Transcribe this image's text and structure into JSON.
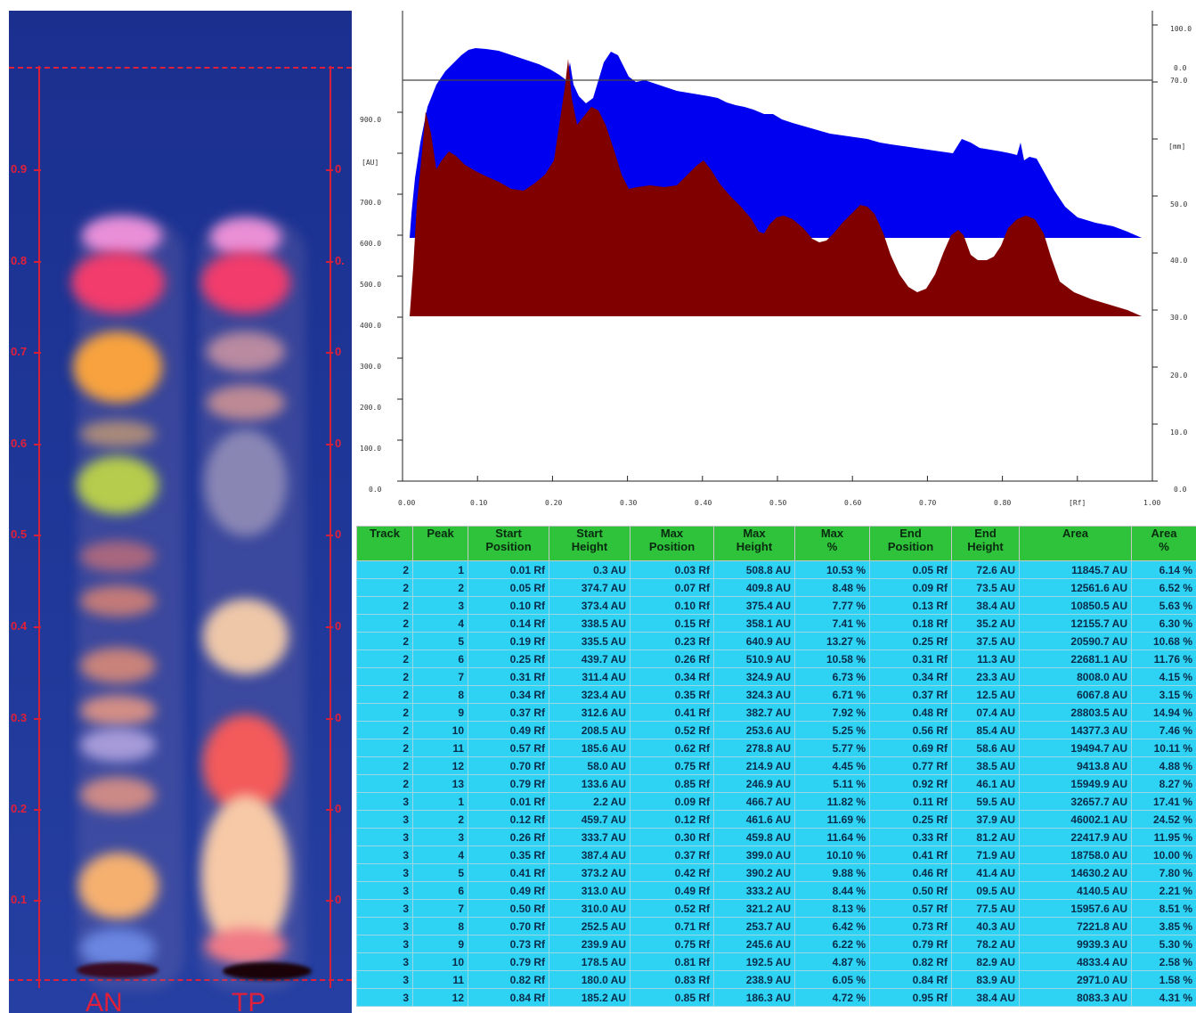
{
  "plate": {
    "rf_labels": [
      "0.9",
      "0.8",
      "0.7",
      "0.6",
      "0.5",
      "0.4",
      "0.3",
      "0.2",
      "0.1"
    ],
    "rf_labels_right": [
      "0",
      "0.",
      "0",
      "0",
      "0",
      "0",
      "0",
      "0",
      "0"
    ],
    "lanes": [
      "AN",
      "TP"
    ]
  },
  "densitogram": {
    "y_left": [
      "900.0",
      "[AU]",
      "700.0",
      "600.0",
      "500.0",
      "400.0",
      "300.0",
      "200.0",
      "100.0",
      "0.0"
    ],
    "y_right": [
      "100.0",
      "0.0",
      "70.0",
      "[mm]",
      "50.0",
      "40.0",
      "30.0",
      "20.0",
      "10.0",
      "0.0"
    ],
    "x_ticks": [
      "0.00",
      "0.10",
      "0.20",
      "0.30",
      "0.40",
      "0.50",
      "0.60",
      "0.70",
      "0.80",
      "[Rf]",
      "1.00"
    ],
    "colors": {
      "track_top": "#0000f0",
      "track_bottom": "#800000"
    }
  },
  "table": {
    "headers": [
      {
        "l1": "Track",
        "l2": ""
      },
      {
        "l1": "Peak",
        "l2": ""
      },
      {
        "l1": "Start",
        "l2": "Position"
      },
      {
        "l1": "Start",
        "l2": "Height"
      },
      {
        "l1": "Max",
        "l2": "Position"
      },
      {
        "l1": "Max",
        "l2": "Height"
      },
      {
        "l1": "Max",
        "l2": "%"
      },
      {
        "l1": "End",
        "l2": "Position"
      },
      {
        "l1": "End",
        "l2": "Height"
      },
      {
        "l1": "Area",
        "l2": ""
      },
      {
        "l1": "Area",
        "l2": "%"
      }
    ],
    "rows": [
      [
        "2",
        "1",
        "0.01 Rf",
        "0.3 AU",
        "0.03 Rf",
        "508.8 AU",
        "10.53 %",
        "0.05 Rf",
        "72.6 AU",
        "11845.7 AU",
        "6.14 %"
      ],
      [
        "2",
        "2",
        "0.05 Rf",
        "374.7 AU",
        "0.07 Rf",
        "409.8 AU",
        "8.48 %",
        "0.09 Rf",
        "73.5 AU",
        "12561.6 AU",
        "6.52 %"
      ],
      [
        "2",
        "3",
        "0.10 Rf",
        "373.4 AU",
        "0.10 Rf",
        "375.4 AU",
        "7.77 %",
        "0.13 Rf",
        "38.4 AU",
        "10850.5 AU",
        "5.63 %"
      ],
      [
        "2",
        "4",
        "0.14 Rf",
        "338.5 AU",
        "0.15 Rf",
        "358.1 AU",
        "7.41 %",
        "0.18 Rf",
        "35.2 AU",
        "12155.7 AU",
        "6.30 %"
      ],
      [
        "2",
        "5",
        "0.19 Rf",
        "335.5 AU",
        "0.23 Rf",
        "640.9 AU",
        "13.27 %",
        "0.25 Rf",
        "37.5 AU",
        "20590.7 AU",
        "10.68 %"
      ],
      [
        "2",
        "6",
        "0.25 Rf",
        "439.7 AU",
        "0.26 Rf",
        "510.9 AU",
        "10.58 %",
        "0.31 Rf",
        "11.3 AU",
        "22681.1 AU",
        "11.76 %"
      ],
      [
        "2",
        "7",
        "0.31 Rf",
        "311.4 AU",
        "0.34 Rf",
        "324.9 AU",
        "6.73 %",
        "0.34 Rf",
        "23.3 AU",
        "8008.0 AU",
        "4.15 %"
      ],
      [
        "2",
        "8",
        "0.34 Rf",
        "323.4 AU",
        "0.35 Rf",
        "324.3 AU",
        "6.71 %",
        "0.37 Rf",
        "12.5 AU",
        "6067.8 AU",
        "3.15 %"
      ],
      [
        "2",
        "9",
        "0.37 Rf",
        "312.6 AU",
        "0.41 Rf",
        "382.7 AU",
        "7.92 %",
        "0.48 Rf",
        "07.4 AU",
        "28803.5 AU",
        "14.94 %"
      ],
      [
        "2",
        "10",
        "0.49 Rf",
        "208.5 AU",
        "0.52 Rf",
        "253.6 AU",
        "5.25 %",
        "0.56 Rf",
        "85.4 AU",
        "14377.3 AU",
        "7.46 %"
      ],
      [
        "2",
        "11",
        "0.57 Rf",
        "185.6 AU",
        "0.62 Rf",
        "278.8 AU",
        "5.77 %",
        "0.69 Rf",
        "58.6 AU",
        "19494.7 AU",
        "10.11 %"
      ],
      [
        "2",
        "12",
        "0.70 Rf",
        "58.0 AU",
        "0.75 Rf",
        "214.9 AU",
        "4.45 %",
        "0.77 Rf",
        "38.5 AU",
        "9413.8 AU",
        "4.88 %"
      ],
      [
        "2",
        "13",
        "0.79 Rf",
        "133.6 AU",
        "0.85 Rf",
        "246.9 AU",
        "5.11 %",
        "0.92 Rf",
        "46.1 AU",
        "15949.9 AU",
        "8.27 %"
      ],
      [
        "3",
        "1",
        "0.01 Rf",
        "2.2 AU",
        "0.09 Rf",
        "466.7 AU",
        "11.82 %",
        "0.11 Rf",
        "59.5 AU",
        "32657.7 AU",
        "17.41 %"
      ],
      [
        "3",
        "2",
        "0.12 Rf",
        "459.7 AU",
        "0.12 Rf",
        "461.6 AU",
        "11.69 %",
        "0.25 Rf",
        "37.9 AU",
        "46002.1 AU",
        "24.52 %"
      ],
      [
        "3",
        "3",
        "0.26 Rf",
        "333.7 AU",
        "0.30 Rf",
        "459.8 AU",
        "11.64 %",
        "0.33 Rf",
        "81.2 AU",
        "22417.9 AU",
        "11.95 %"
      ],
      [
        "3",
        "4",
        "0.35 Rf",
        "387.4 AU",
        "0.37 Rf",
        "399.0 AU",
        "10.10 %",
        "0.41 Rf",
        "71.9 AU",
        "18758.0 AU",
        "10.00 %"
      ],
      [
        "3",
        "5",
        "0.41 Rf",
        "373.2 AU",
        "0.42 Rf",
        "390.2 AU",
        "9.88 %",
        "0.46 Rf",
        "41.4 AU",
        "14630.2 AU",
        "7.80 %"
      ],
      [
        "3",
        "6",
        "0.49 Rf",
        "313.0 AU",
        "0.49 Rf",
        "333.2 AU",
        "8.44 %",
        "0.50 Rf",
        "09.5 AU",
        "4140.5 AU",
        "2.21 %"
      ],
      [
        "3",
        "7",
        "0.50 Rf",
        "310.0 AU",
        "0.52 Rf",
        "321.2 AU",
        "8.13 %",
        "0.57 Rf",
        "77.5 AU",
        "15957.6 AU",
        "8.51 %"
      ],
      [
        "3",
        "8",
        "0.70 Rf",
        "252.5 AU",
        "0.71 Rf",
        "253.7 AU",
        "6.42 %",
        "0.73 Rf",
        "40.3 AU",
        "7221.8 AU",
        "3.85 %"
      ],
      [
        "3",
        "9",
        "0.73 Rf",
        "239.9 AU",
        "0.75 Rf",
        "245.6 AU",
        "6.22 %",
        "0.79 Rf",
        "78.2 AU",
        "9939.3 AU",
        "5.30 %"
      ],
      [
        "3",
        "10",
        "0.79 Rf",
        "178.5 AU",
        "0.81 Rf",
        "192.5 AU",
        "4.87 %",
        "0.82 Rf",
        "82.9 AU",
        "4833.4 AU",
        "2.58 %"
      ],
      [
        "3",
        "11",
        "0.82 Rf",
        "180.0 AU",
        "0.83 Rf",
        "238.9 AU",
        "6.05 %",
        "0.84 Rf",
        "83.9 AU",
        "2971.0 AU",
        "1.58 %"
      ],
      [
        "3",
        "12",
        "0.84 Rf",
        "185.2 AU",
        "0.85 Rf",
        "186.3 AU",
        "4.72 %",
        "0.95 Rf",
        "38.4 AU",
        "8083.3 AU",
        "4.31 %"
      ]
    ]
  }
}
